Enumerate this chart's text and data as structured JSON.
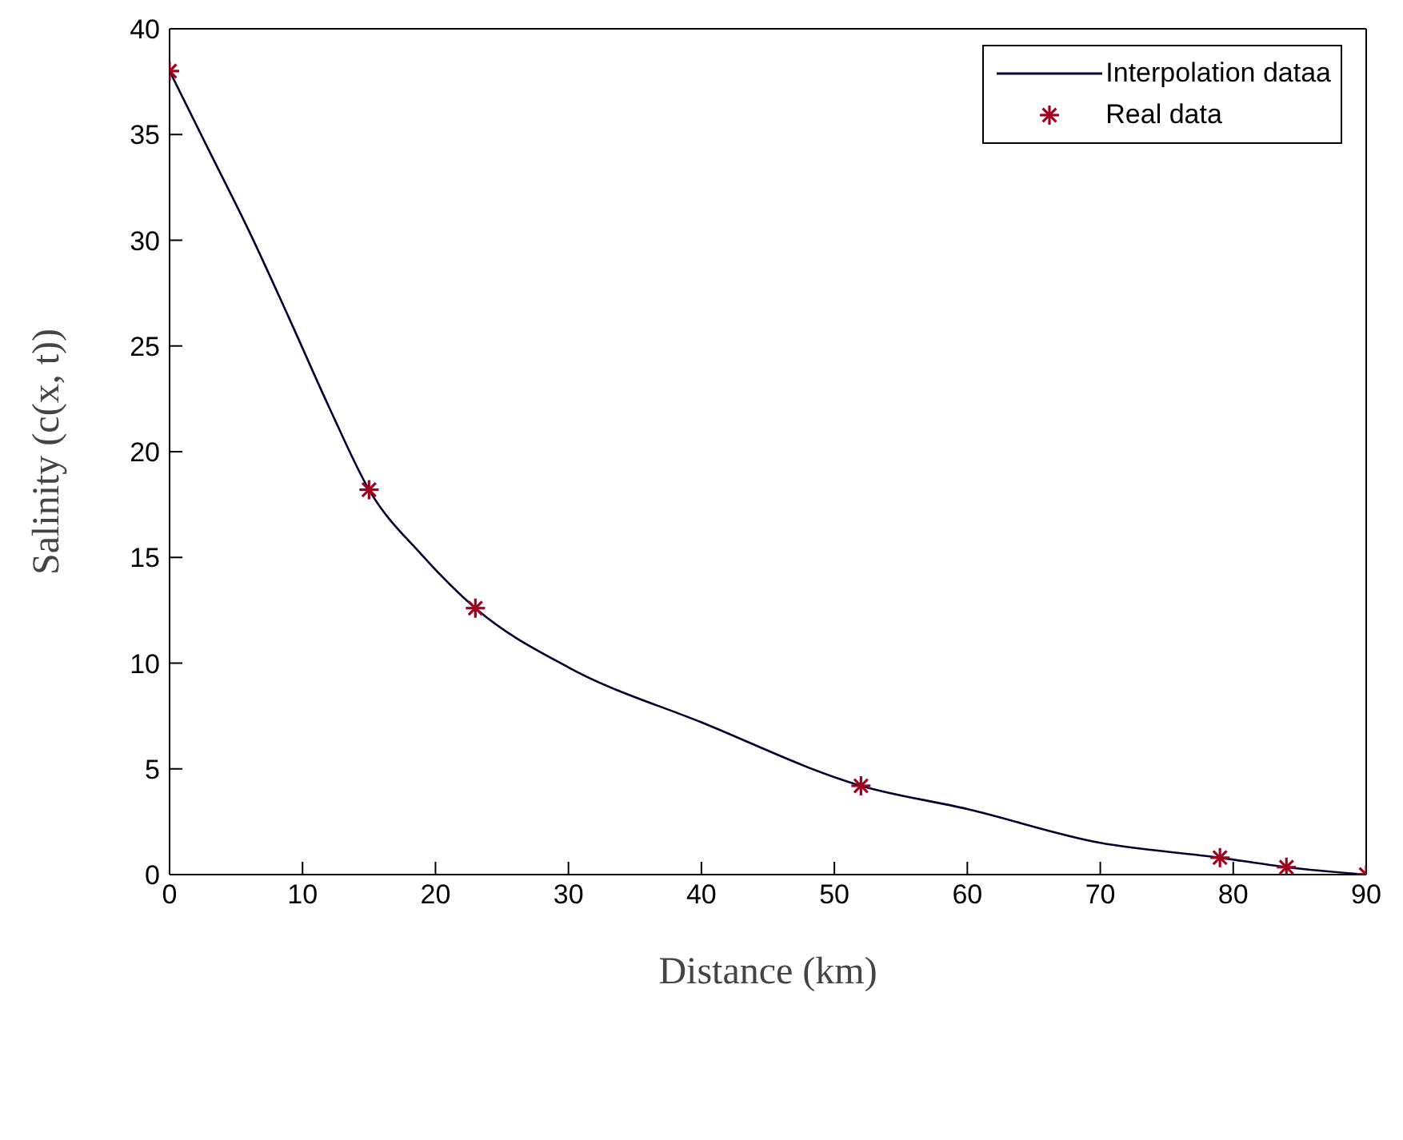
{
  "chart_data": {
    "type": "line",
    "xlabel": "Distance (km)",
    "ylabel": "Salinity (c(x, t))",
    "xlim": [
      0,
      90
    ],
    "xticks": [
      0,
      10,
      20,
      30,
      40,
      50,
      60,
      70,
      80,
      90
    ],
    "ylim": [
      0,
      40
    ],
    "yticks": [
      0,
      5,
      10,
      15,
      20,
      25,
      30,
      35,
      40
    ],
    "legend": "top right",
    "series": [
      {
        "name": "Interpolation dataa",
        "color": "#000033",
        "marker": "none",
        "line_style": "solid",
        "x": [
          0,
          3,
          6,
          9,
          12,
          15,
          19,
          23,
          30,
          40,
          52,
          60,
          70,
          79,
          84,
          90
        ],
        "values": [
          38,
          34.2,
          30.4,
          26.3,
          22.1,
          18.2,
          15.1,
          12.6,
          9.8,
          7.2,
          4.2,
          3.1,
          1.5,
          0.8,
          0.35,
          0
        ]
      },
      {
        "name": "Real data",
        "type": "scatter",
        "color": "#a00020",
        "marker": "cross",
        "x": [
          0,
          15,
          23,
          52,
          79,
          84,
          90
        ],
        "values": [
          38,
          18.2,
          12.6,
          4.2,
          0.8,
          0.35,
          0
        ]
      }
    ]
  }
}
